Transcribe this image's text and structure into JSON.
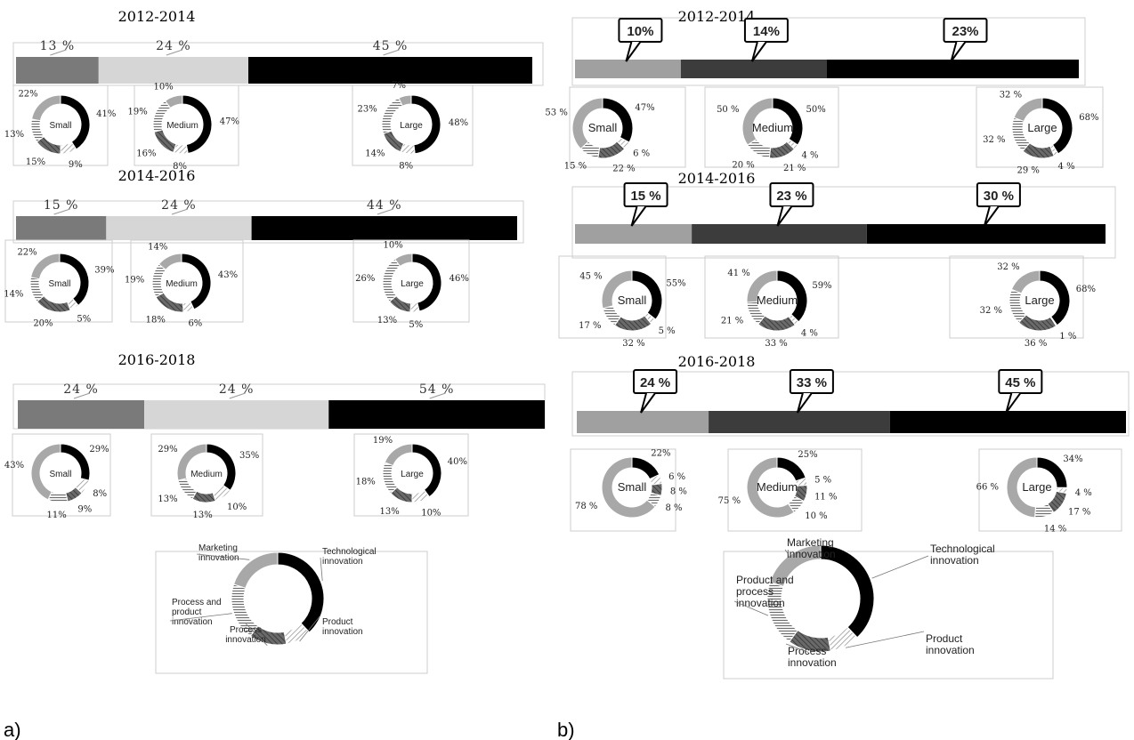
{
  "panel_labels": {
    "a": "a)",
    "b": "b)"
  },
  "chart_data": [
    {
      "panel": "a",
      "type": "bar",
      "title": "2012-2014",
      "segments": [
        "13 %",
        "24 %",
        "45 %"
      ],
      "donuts": [
        {
          "label": "Small",
          "values": [
            41,
            9,
            15,
            13,
            22
          ],
          "labels": [
            "41%",
            "9%",
            "15%",
            "13%",
            "22%"
          ]
        },
        {
          "label": "Medium",
          "values": [
            47,
            8,
            16,
            19,
            10
          ],
          "labels": [
            "47%",
            "8%",
            "16%",
            "19%",
            "10%"
          ]
        },
        {
          "label": "Large",
          "values": [
            48,
            8,
            14,
            23,
            7
          ],
          "labels": [
            "48%",
            "8%",
            "14%",
            "23%",
            "7%"
          ]
        }
      ]
    },
    {
      "panel": "a",
      "type": "bar",
      "title": "2014-2016",
      "segments": [
        "15 %",
        "24 %",
        "44 %"
      ],
      "donuts": [
        {
          "label": "Small",
          "values": [
            39,
            5,
            20,
            14,
            22
          ],
          "labels": [
            "39%",
            "5%",
            "20%",
            "14%",
            "22%"
          ]
        },
        {
          "label": "Medium",
          "values": [
            43,
            6,
            18,
            19,
            14
          ],
          "labels": [
            "43%",
            "6%",
            "18%",
            "19%",
            "14%"
          ]
        },
        {
          "label": "Large",
          "values": [
            46,
            5,
            13,
            26,
            10
          ],
          "labels": [
            "46%",
            "5%",
            "13%",
            "26%",
            "10%"
          ]
        }
      ]
    },
    {
      "panel": "a",
      "type": "bar",
      "title": "2016-2018",
      "segments": [
        "24 %",
        "24 %",
        "54 %"
      ],
      "donuts": [
        {
          "label": "Small",
          "values": [
            29,
            8,
            9,
            11,
            43
          ],
          "labels": [
            "29%",
            "8%",
            "9%",
            "11%",
            "43%"
          ]
        },
        {
          "label": "Medium",
          "values": [
            35,
            10,
            13,
            13,
            29
          ],
          "labels": [
            "35%",
            "10%",
            "13%",
            "13%",
            "29%"
          ]
        },
        {
          "label": "Large",
          "values": [
            40,
            10,
            13,
            18,
            19
          ],
          "labels": [
            "40%",
            "10%",
            "13%",
            "18%",
            "19%"
          ]
        }
      ]
    },
    {
      "panel": "b",
      "type": "bar",
      "title": "2012-2014",
      "segments": [
        "10%",
        "14%",
        "23%"
      ],
      "donuts": [
        {
          "label": "Small",
          "values": [
            47,
            6,
            22,
            15,
            53
          ],
          "labels": [
            "47%",
            "6 %",
            "22 %",
            "15 %",
            "53 %"
          ]
        },
        {
          "label": "Medium",
          "values": [
            50,
            4,
            21,
            20,
            50
          ],
          "labels": [
            "50%",
            "4 %",
            "21 %",
            "20 %",
            "50 %"
          ]
        },
        {
          "label": "Large",
          "values": [
            68,
            4,
            29,
            32,
            32
          ],
          "labels": [
            "68%",
            "4 %",
            "29 %",
            "32 %",
            "32 %"
          ]
        }
      ]
    },
    {
      "panel": "b",
      "type": "bar",
      "title": "2014-2016",
      "segments": [
        "15 %",
        "23 %",
        "30 %"
      ],
      "donuts": [
        {
          "label": "Small",
          "values": [
            55,
            5,
            32,
            17,
            45
          ],
          "labels": [
            "55%",
            "5 %",
            "32 %",
            "17 %",
            "45 %"
          ]
        },
        {
          "label": "Medium",
          "values": [
            59,
            4,
            33,
            21,
            41
          ],
          "labels": [
            "59%",
            "4 %",
            "33 %",
            "21 %",
            "41 %"
          ]
        },
        {
          "label": "Large",
          "values": [
            68,
            1,
            36,
            32,
            32
          ],
          "labels": [
            "68%",
            "1 %",
            "36 %",
            "32 %",
            "32 %"
          ]
        }
      ]
    },
    {
      "panel": "b",
      "type": "bar",
      "title": "2016-2018",
      "segments": [
        "24 %",
        "33 %",
        "45 %"
      ],
      "donuts": [
        {
          "label": "Small",
          "values": [
            22,
            6,
            8,
            8,
            78
          ],
          "labels": [
            "22%",
            "6 %",
            "8 %",
            "8 %",
            "78 %"
          ]
        },
        {
          "label": "Medium",
          "values": [
            25,
            5,
            11,
            10,
            75
          ],
          "labels": [
            "25%",
            "5 %",
            "11 %",
            "10 %",
            "75 %"
          ]
        },
        {
          "label": "Large",
          "values": [
            34,
            4,
            17,
            14,
            66
          ],
          "labels": [
            "34%",
            "4 %",
            "17 %",
            "14 %",
            "66 %"
          ]
        }
      ]
    }
  ],
  "legends": [
    {
      "panel": "a",
      "type": "pie",
      "values": [
        38,
        9,
        13,
        20,
        20
      ],
      "labels": [
        "Technological innovation",
        "Product innovation",
        "Process innovation",
        "Process and product innovation",
        "Marketing innovation"
      ]
    },
    {
      "panel": "b",
      "type": "pie",
      "values": [
        38,
        9,
        13,
        20,
        20
      ],
      "labels": [
        "Technological innovation",
        "Product innovation",
        "Process innovation",
        "Product and process innovation",
        "Marketing innovation"
      ]
    }
  ],
  "colors": {
    "tech": "#000000",
    "product": "#d0d0d0",
    "process": "#555555",
    "procprod": "#c8c8c8",
    "marketing": "#a8a8a8",
    "bar_a": [
      "#7a7a7a",
      "#d6d6d6",
      "#000000"
    ],
    "bar_b": [
      "#a0a0a0",
      "#3c3c3c",
      "#000000"
    ]
  }
}
